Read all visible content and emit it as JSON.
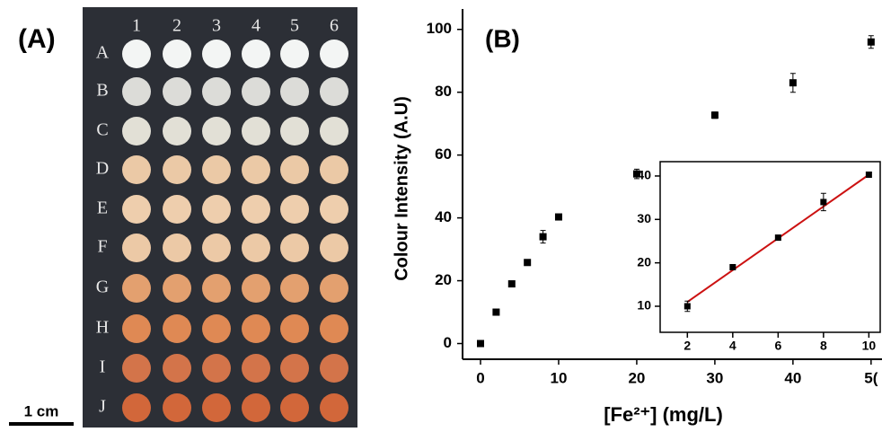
{
  "panel_a": {
    "label": "(A)",
    "columns": [
      "1",
      "2",
      "3",
      "4",
      "5",
      "6"
    ],
    "rows": [
      "A",
      "B",
      "C",
      "D",
      "E",
      "F",
      "G",
      "H",
      "I",
      "J"
    ],
    "scale_bar": "1 cm"
  },
  "chart_data": [
    {
      "type": "scatter",
      "title": "(B)",
      "xlabel": "[Fe²⁺] (mg/L)",
      "ylabel": "Colour Intensity (A.U)",
      "x": [
        0,
        2,
        4,
        6,
        8,
        10,
        20,
        30,
        40,
        50
      ],
      "values": [
        0,
        10,
        19,
        25.8,
        34,
        40.3,
        54,
        72.7,
        83,
        96
      ],
      "errors": [
        0.4,
        0.6,
        0.5,
        0.6,
        2,
        0.6,
        1.5,
        1,
        3,
        2
      ],
      "color": "#000000",
      "xlim": [
        -2.3,
        51.4
      ],
      "ylim": [
        -5,
        106.5
      ],
      "xticks": [
        0,
        10,
        20,
        30,
        40,
        {
          "value": 50,
          "label": "5("
        }
      ],
      "yticks": [
        0,
        20,
        40,
        60,
        80,
        100
      ]
    },
    {
      "type": "scatter",
      "x": [
        2,
        4,
        6,
        8,
        10
      ],
      "values": [
        10,
        19,
        25.8,
        34,
        40.3
      ],
      "errors": [
        1.2,
        0.5,
        0.5,
        2,
        0.5
      ],
      "color": "#000000",
      "fit_line": {
        "x": [
          2,
          10
        ],
        "values": [
          11,
          40.3
        ],
        "color": "#cc1111"
      },
      "xlim": [
        0.8,
        10.5
      ],
      "ylim": [
        4,
        43.3
      ],
      "xticks": [
        2,
        4,
        6,
        8,
        10
      ],
      "yticks": [
        10,
        20,
        30,
        40
      ]
    }
  ]
}
